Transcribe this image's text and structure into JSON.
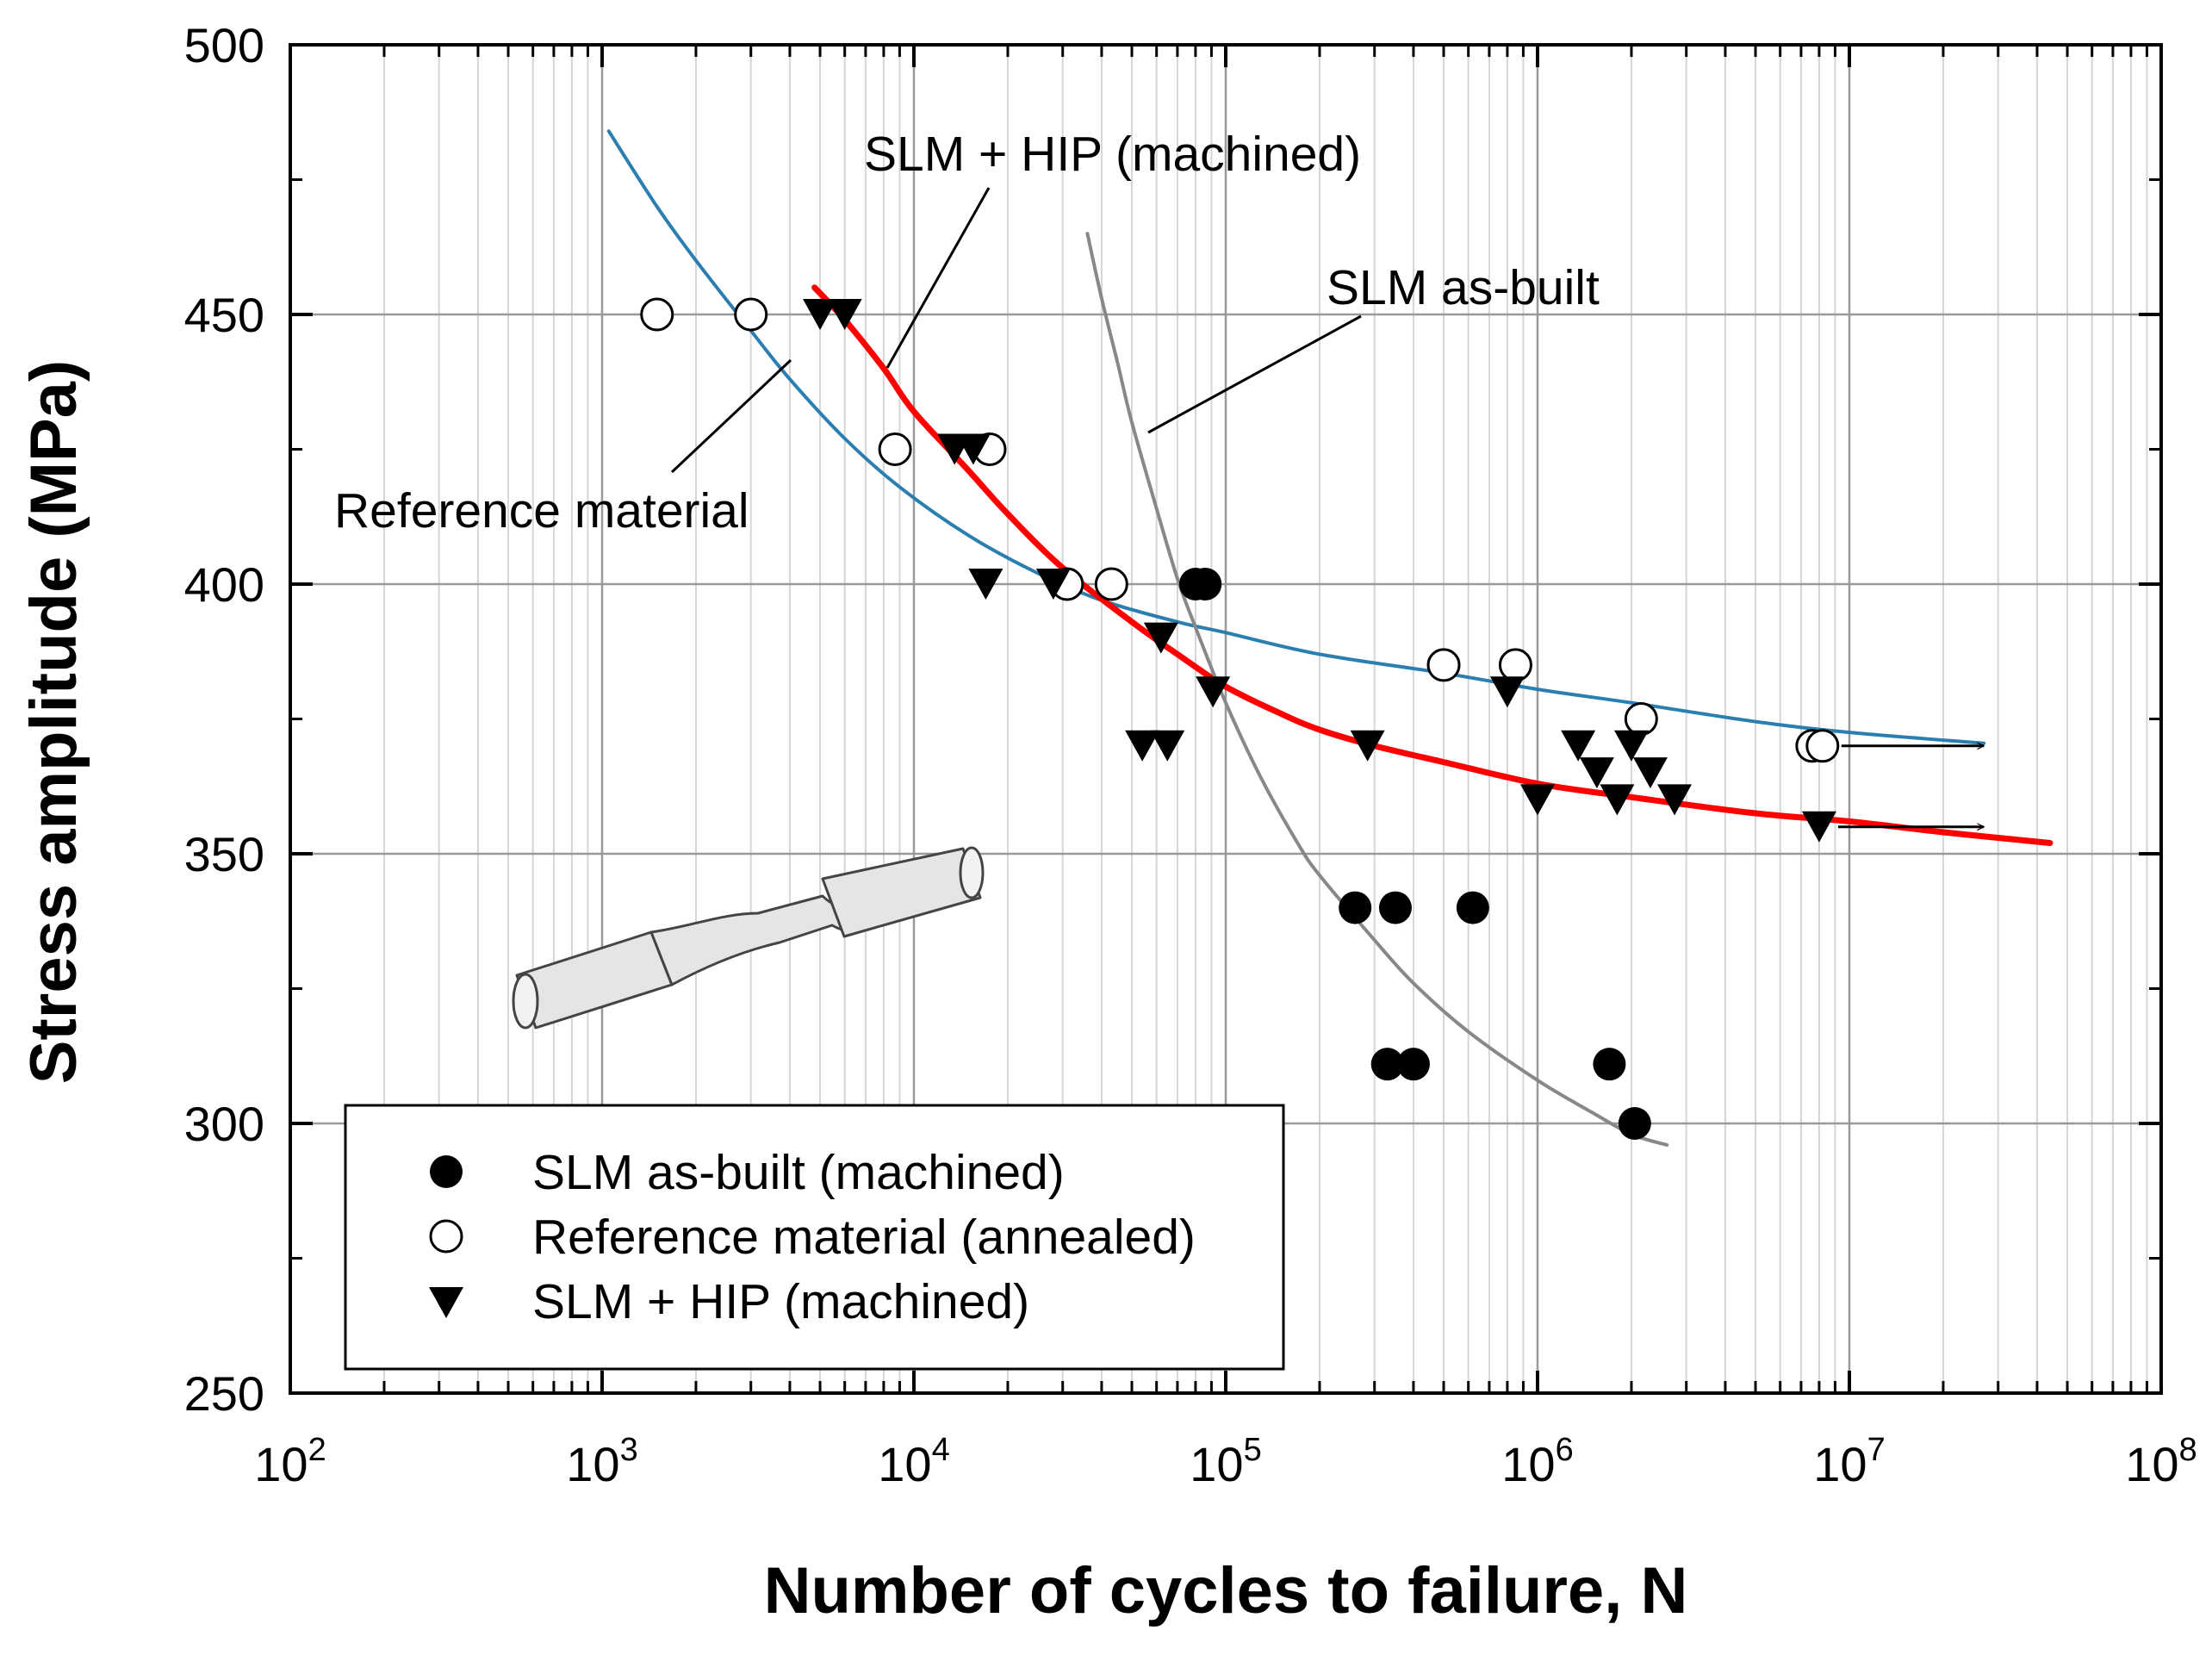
{
  "chart_data": {
    "type": "scatter",
    "title": "",
    "xlabel": "Number of cycles to failure, N",
    "ylabel": "Stress amplitude (MPa)",
    "xscale": "log",
    "xlim": [
      100,
      100000000
    ],
    "ylim": [
      250,
      500
    ],
    "grid": true,
    "x_ticks": [
      {
        "base": "10",
        "exp": "2",
        "value": 100
      },
      {
        "base": "10",
        "exp": "3",
        "value": 1000
      },
      {
        "base": "10",
        "exp": "4",
        "value": 10000
      },
      {
        "base": "10",
        "exp": "5",
        "value": 100000
      },
      {
        "base": "10",
        "exp": "6",
        "value": 1000000
      },
      {
        "base": "10",
        "exp": "7",
        "value": 10000000
      },
      {
        "base": "10",
        "exp": "8",
        "value": 100000000
      }
    ],
    "y_ticks": [
      250,
      300,
      350,
      400,
      450,
      500
    ],
    "legend_position": "bottom-left",
    "series": [
      {
        "name": "SLM as-built (machined)",
        "marker": "filled-circle",
        "points": [
          {
            "x": 260000,
            "y": 340
          },
          {
            "x": 350000,
            "y": 340
          },
          {
            "x": 620000,
            "y": 340
          },
          {
            "x": 330000,
            "y": 311
          },
          {
            "x": 400000,
            "y": 311
          },
          {
            "x": 1700000,
            "y": 311
          },
          {
            "x": 2050000,
            "y": 300
          },
          {
            "x": 80000,
            "y": 400
          },
          {
            "x": 86000,
            "y": 400
          }
        ]
      },
      {
        "name": "Reference material (annealed)",
        "marker": "open-circle",
        "points": [
          {
            "x": 1500,
            "y": 450
          },
          {
            "x": 3000,
            "y": 450
          },
          {
            "x": 8700,
            "y": 425
          },
          {
            "x": 17500,
            "y": 425
          },
          {
            "x": 31000,
            "y": 400
          },
          {
            "x": 43000,
            "y": 400
          },
          {
            "x": 500000,
            "y": 385
          },
          {
            "x": 850000,
            "y": 385
          },
          {
            "x": 2150000,
            "y": 375
          },
          {
            "x": 7600000,
            "y": 370,
            "runout": true
          },
          {
            "x": 8200000,
            "y": 370,
            "runout": true
          }
        ]
      },
      {
        "name": "SLM + HIP (machined)",
        "marker": "filled-down-triangle",
        "points": [
          {
            "x": 5000,
            "y": 450
          },
          {
            "x": 6000,
            "y": 450
          },
          {
            "x": 13500,
            "y": 425
          },
          {
            "x": 15500,
            "y": 425
          },
          {
            "x": 17000,
            "y": 400
          },
          {
            "x": 28000,
            "y": 400
          },
          {
            "x": 62000,
            "y": 390
          },
          {
            "x": 91000,
            "y": 380
          },
          {
            "x": 54000,
            "y": 370
          },
          {
            "x": 65000,
            "y": 370
          },
          {
            "x": 285000,
            "y": 370
          },
          {
            "x": 800000,
            "y": 380
          },
          {
            "x": 1350000,
            "y": 370
          },
          {
            "x": 2000000,
            "y": 370
          },
          {
            "x": 1550000,
            "y": 365
          },
          {
            "x": 2300000,
            "y": 365
          },
          {
            "x": 1000000,
            "y": 360
          },
          {
            "x": 1800000,
            "y": 360
          },
          {
            "x": 2750000,
            "y": 360
          },
          {
            "x": 8000000,
            "y": 355,
            "runout": true
          }
        ]
      }
    ],
    "curves": [
      {
        "name": "Reference material",
        "color": "#2a7fb0",
        "x": [
          1050,
          1500,
          2000,
          3000,
          4000,
          6000,
          9000,
          15000,
          25000,
          40000,
          70000,
          100000,
          200000,
          500000,
          1000000,
          2000000,
          5000000,
          10000000,
          27000000
        ],
        "y": [
          484,
          470,
          460,
          447,
          438,
          427,
          418,
          409,
          402,
          397,
          393,
          391,
          387,
          383.5,
          380.5,
          378,
          374.5,
          372.5,
          370.5
        ]
      },
      {
        "name": "SLM + HIP (machined)",
        "color": "#ff0000",
        "x": [
          4800,
          6000,
          8000,
          10000,
          15000,
          20000,
          30000,
          50000,
          70000,
          100000,
          150000,
          200000,
          300000,
          500000,
          1000000,
          2000000,
          5000000,
          10000000,
          20000000,
          44000000
        ],
        "y": [
          455,
          449,
          440,
          432,
          421,
          413,
          403,
          393,
          387,
          381,
          376,
          373,
          370,
          367,
          363,
          360.5,
          357.5,
          356,
          354,
          352
        ]
      },
      {
        "name": "SLM as-built",
        "color": "#888888",
        "x": [
          36000,
          40000,
          45000,
          50000,
          60000,
          70000,
          80000,
          100000,
          130000,
          170000,
          200000,
          300000,
          400000,
          600000,
          1000000,
          1500000,
          2000000,
          2600000
        ],
        "y": [
          465,
          453,
          441,
          430,
          414,
          401,
          392,
          378,
          364,
          352,
          346,
          334,
          326,
          317,
          308,
          302,
          298,
          296
        ]
      }
    ],
    "annotations": [
      {
        "text": "SLM + HIP (machined)",
        "target": "SLM + HIP (machined) curve"
      },
      {
        "text": "SLM as-built",
        "target": "SLM as-built curve"
      },
      {
        "text": "Reference material",
        "target": "Reference material curve"
      }
    ]
  }
}
